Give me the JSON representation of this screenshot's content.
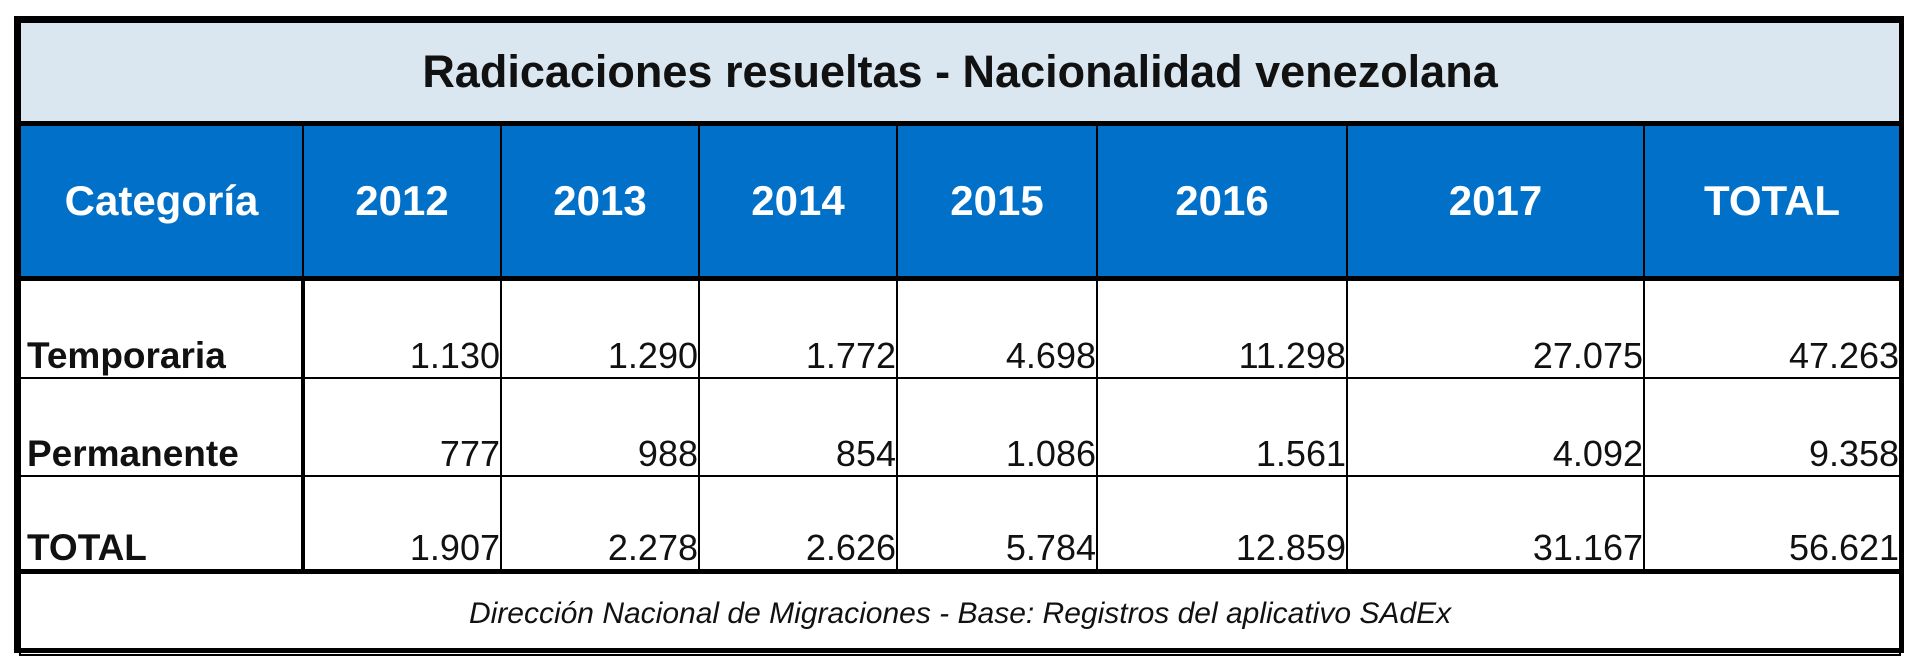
{
  "chart_data": {
    "type": "table",
    "title": "Radicaciones resueltas - Nacionalidad venezolana",
    "columns": [
      "Categoría",
      "2012",
      "2013",
      "2014",
      "2015",
      "2016",
      "2017",
      "TOTAL"
    ],
    "rows": [
      {
        "label": "Temporaria",
        "values": [
          "1.130",
          "1.290",
          "1.772",
          "4.698",
          "11.298",
          "27.075",
          "47.263"
        ]
      },
      {
        "label": "Permanente",
        "values": [
          "777",
          "988",
          "854",
          "1.086",
          "1.561",
          "4.092",
          "9.358"
        ]
      },
      {
        "label": "TOTAL",
        "values": [
          "1.907",
          "2.278",
          "2.626",
          "5.784",
          "12.859",
          "31.167",
          "56.621"
        ]
      }
    ],
    "source": "Dirección Nacional de Migraciones - Base: Registros del aplicativo SAdEx"
  },
  "colors": {
    "title_bg": "#dbe7f0",
    "header_bg": "#0070c8",
    "header_text": "#ffffff",
    "border": "#000000"
  }
}
